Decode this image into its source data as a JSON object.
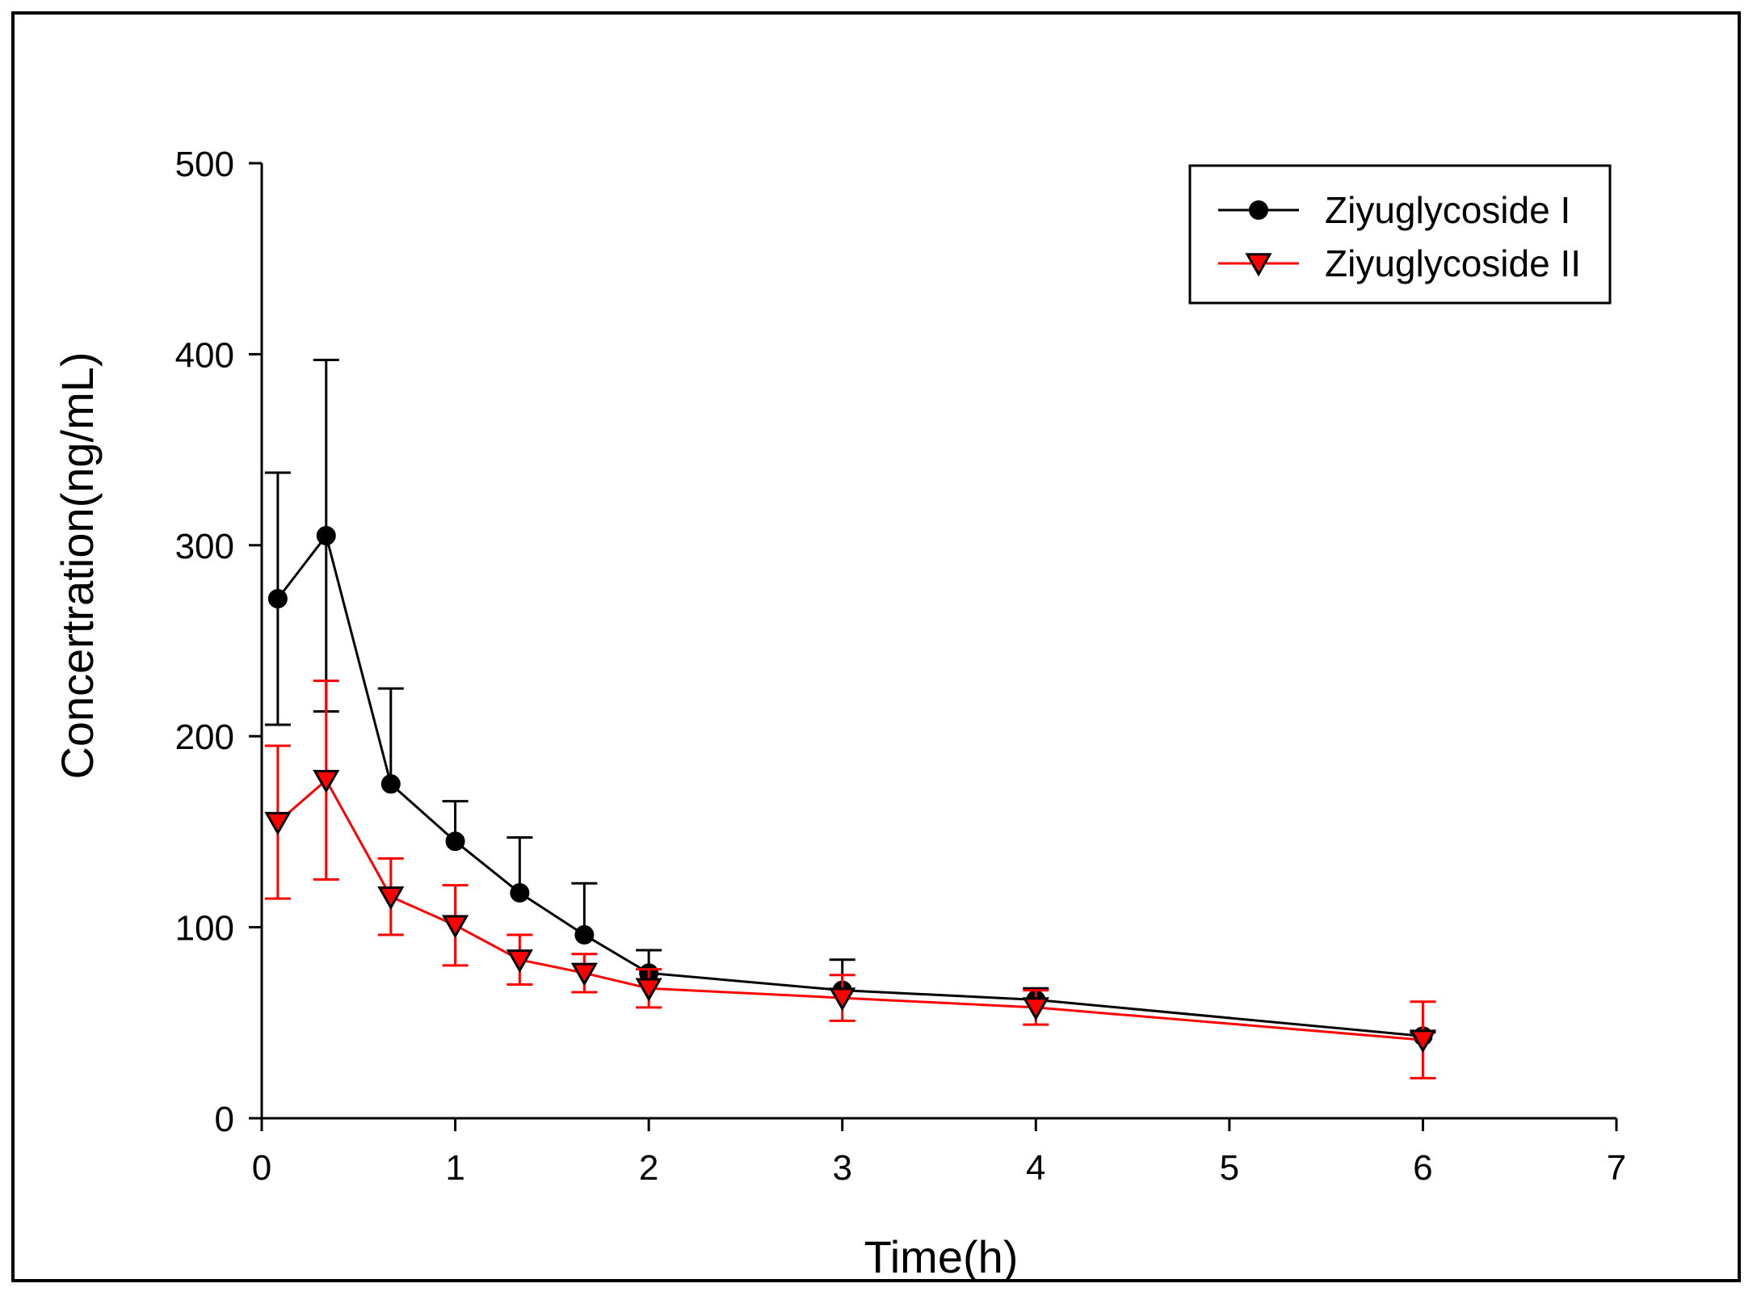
{
  "chart_data": {
    "type": "line",
    "title": "",
    "xlabel": "Time(h)",
    "ylabel": "Concertration(ng/mL)",
    "xlim": [
      0,
      7
    ],
    "ylim": [
      0,
      500
    ],
    "xticks": [
      0,
      1,
      2,
      3,
      4,
      5,
      6,
      7
    ],
    "yticks": [
      0,
      100,
      200,
      300,
      400,
      500
    ],
    "grid": false,
    "legend_position": "top-right",
    "x": [
      0.083,
      0.333,
      0.667,
      1,
      1.333,
      1.667,
      2,
      3,
      4,
      6
    ],
    "series": [
      {
        "name": "Ziyuglycoside I",
        "color": "#000000",
        "marker": "circle",
        "values": [
          272,
          305,
          175,
          145,
          118,
          96,
          76,
          67,
          62,
          43
        ],
        "errors": [
          66,
          92,
          50,
          21,
          29,
          27,
          12,
          16,
          6,
          2
        ]
      },
      {
        "name": "Ziyuglycoside II",
        "color": "#ff0000",
        "marker": "triangle-down",
        "values": [
          155,
          177,
          116,
          101,
          83,
          76,
          68,
          63,
          58,
          41
        ],
        "errors": [
          40,
          52,
          20,
          21,
          13,
          10,
          10,
          12,
          9,
          20
        ]
      }
    ]
  }
}
